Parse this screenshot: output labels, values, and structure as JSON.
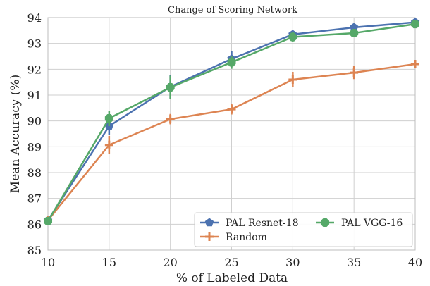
{
  "chart_data": {
    "type": "line",
    "title": "Change of Scoring Network",
    "xlabel": "% of Labeled Data",
    "ylabel": "Mean Accuracy (%)",
    "xlim": [
      10,
      40
    ],
    "ylim": [
      85,
      94
    ],
    "x_ticks": [
      10,
      15,
      20,
      25,
      30,
      35,
      40
    ],
    "y_ticks": [
      85,
      86,
      87,
      88,
      89,
      90,
      91,
      92,
      93,
      94
    ],
    "grid": true,
    "legend_position": "lower-right",
    "x": [
      10,
      15,
      20,
      25,
      30,
      35,
      40
    ],
    "series": [
      {
        "name": "PAL Resnet-18",
        "color": "#4c72b0",
        "marker": "pentagon",
        "values": [
          86.15,
          89.8,
          91.32,
          92.4,
          93.35,
          93.62,
          93.82
        ],
        "errors": [
          0.0,
          0.35,
          0.45,
          0.3,
          0.15,
          0.1,
          0.05
        ]
      },
      {
        "name": "Random",
        "color": "#dd8452",
        "marker": "plus",
        "values": [
          86.15,
          89.07,
          90.07,
          90.45,
          91.6,
          91.87,
          92.2
        ],
        "errors": [
          0.0,
          0.35,
          0.2,
          0.2,
          0.3,
          0.25,
          0.1
        ]
      },
      {
        "name": "PAL VGG-16",
        "color": "#55a868",
        "marker": "octagon",
        "values": [
          86.12,
          90.1,
          91.3,
          92.27,
          93.25,
          93.4,
          93.75
        ],
        "errors": [
          0.0,
          0.3,
          0.45,
          0.25,
          0.2,
          0.1,
          0.1
        ]
      }
    ]
  }
}
